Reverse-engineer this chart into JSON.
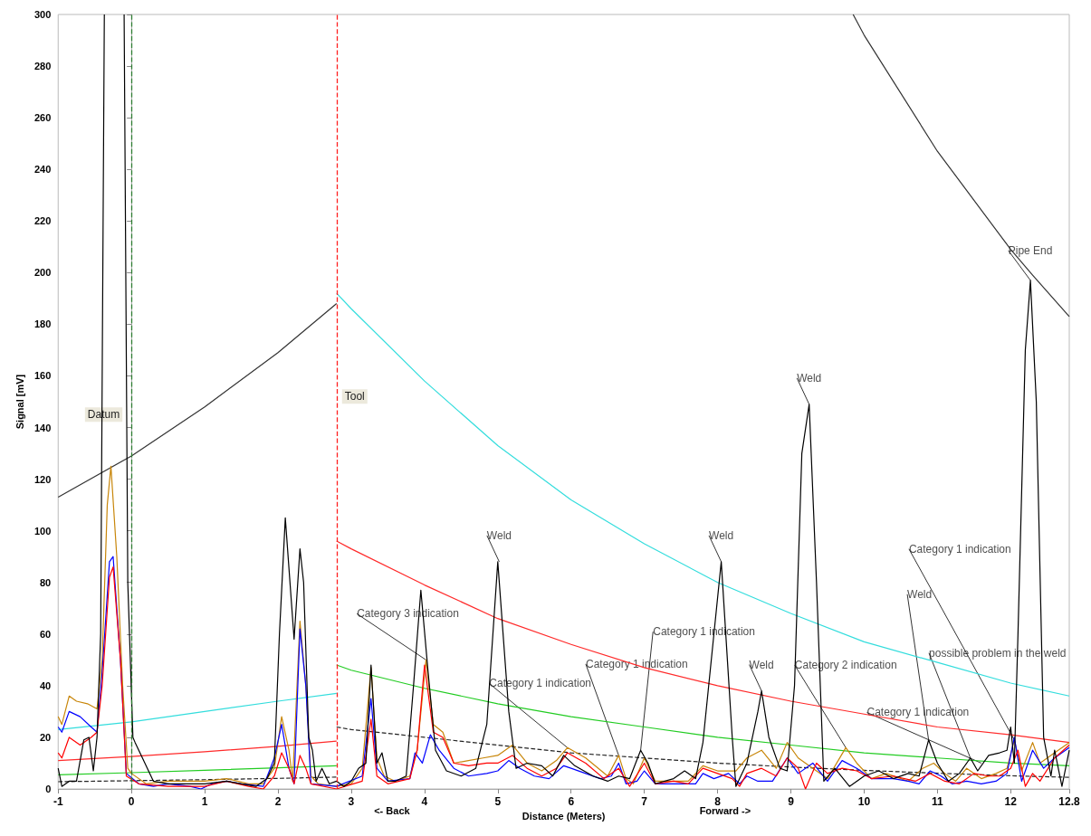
{
  "chart_data": {
    "type": "line",
    "xlabel": "Distance (Meters)",
    "ylabel": "Signal [mV]",
    "xlim": [
      -1,
      12.8
    ],
    "xticks": [
      -1,
      0,
      1,
      2,
      3,
      4,
      5,
      6,
      7,
      8,
      9,
      10,
      11,
      12,
      12.8
    ],
    "ylim": [
      0,
      300
    ],
    "yticks": [
      0,
      20,
      40,
      60,
      80,
      100,
      120,
      140,
      160,
      180,
      200,
      220,
      240,
      260,
      280,
      300
    ],
    "grid": false,
    "marker": "none",
    "series": [
      {
        "color": "#333333",
        "x": [
          -1,
          0,
          1,
          2,
          2.8
        ],
        "values": [
          113,
          129,
          148,
          169,
          188
        ]
      },
      {
        "color": "#333333",
        "x": [
          9.85,
          10,
          11,
          12,
          12.3,
          12.8
        ],
        "values": [
          300,
          292,
          247,
          209,
          199,
          183
        ]
      },
      {
        "color": "#33dddd",
        "x": [
          -1,
          0,
          1,
          2,
          2.8
        ],
        "values": [
          23,
          26,
          30,
          34,
          37
        ]
      },
      {
        "color": "#33dddd",
        "x": [
          2.8,
          3,
          4,
          5,
          6,
          7,
          8,
          9,
          10,
          11,
          12,
          12.8
        ],
        "values": [
          192,
          186,
          158,
          133,
          112,
          95,
          80,
          68,
          57,
          49,
          41,
          36
        ]
      },
      {
        "color": "#ff2a2a",
        "x": [
          -1,
          0,
          1,
          2,
          2.8
        ],
        "values": [
          11,
          12.6,
          14.4,
          16.5,
          18.5
        ]
      },
      {
        "color": "#ff2a2a",
        "x": [
          2.8,
          3,
          4,
          5,
          6,
          7,
          8,
          9,
          10,
          11,
          12,
          12.8
        ],
        "values": [
          96,
          93,
          79,
          66,
          56,
          47,
          40,
          34,
          29,
          24,
          21,
          18
        ]
      },
      {
        "color": "#22cc22",
        "x": [
          -1,
          0,
          1,
          2,
          2.8
        ],
        "values": [
          5.5,
          6.3,
          7.2,
          8.2,
          9
        ]
      },
      {
        "color": "#22cc22",
        "x": [
          2.8,
          3,
          4,
          5,
          6,
          7,
          8,
          9,
          10,
          11,
          12,
          12.8
        ],
        "values": [
          48,
          46,
          39,
          33,
          28,
          24,
          20,
          17,
          14,
          12,
          10,
          9
        ]
      },
      {
        "color": "#222222",
        "line_style": "dashed",
        "x": [
          -1,
          0,
          1,
          2,
          2.8
        ],
        "values": [
          2.8,
          3.2,
          3.6,
          4.1,
          4.6
        ]
      },
      {
        "color": "#222222",
        "line_style": "dashed",
        "x": [
          2.8,
          3,
          4,
          5,
          6,
          7,
          8,
          9,
          10,
          11,
          12,
          12.8
        ],
        "values": [
          24,
          23,
          20,
          17,
          14,
          12,
          10,
          8.5,
          7.2,
          6.1,
          5.1,
          4.5
        ]
      },
      {
        "color": "#c8860a",
        "x": [
          -1,
          -0.95,
          -0.85,
          -0.75,
          -0.6,
          -0.47,
          -0.4,
          -0.33,
          -0.28,
          -0.2,
          -0.12,
          -0.05,
          0,
          0.2,
          0.5,
          1,
          1.3,
          1.6,
          1.8,
          1.95,
          2.05,
          2.15,
          2.2,
          2.3,
          2.38,
          2.45,
          2.55,
          2.8,
          3,
          3.15,
          3.27,
          3.35,
          3.45,
          3.6,
          3.8,
          3.9,
          4.02,
          4.12,
          4.25,
          4.4,
          4.6,
          4.8,
          5,
          5.2,
          5.4,
          5.6,
          5.8,
          5.95,
          6.2,
          6.5,
          6.65,
          6.75,
          6.85,
          7,
          7.15,
          7.4,
          7.6,
          7.8,
          8,
          8.25,
          8.4,
          8.6,
          8.8,
          8.95,
          9.1,
          9.3,
          9.5,
          9.75,
          9.9,
          10.1,
          10.3,
          10.6,
          10.8,
          10.95,
          11.1,
          11.25,
          11.4,
          11.6,
          11.8,
          11.95,
          12.05,
          12.15,
          12.3,
          12.4,
          12.6,
          12.8
        ],
        "values": [
          28,
          25,
          36,
          34,
          33,
          31,
          50,
          110,
          125,
          90,
          40,
          8,
          6,
          2,
          3,
          3,
          4,
          2,
          2,
          8,
          28,
          15,
          3,
          65,
          40,
          5,
          2,
          1,
          2,
          8,
          47,
          12,
          5,
          3,
          5,
          15,
          50,
          25,
          22,
          10,
          11,
          12,
          13,
          17,
          10,
          7,
          11,
          16,
          12,
          5,
          13,
          4,
          2,
          12,
          3,
          3,
          3,
          9,
          7,
          7,
          12,
          15,
          8,
          18,
          12,
          8,
          4,
          16,
          10,
          4,
          6,
          3,
          8,
          10,
          6,
          3,
          8,
          4,
          6,
          8,
          19,
          7,
          18,
          10,
          14,
          18
        ]
      },
      {
        "color": "#0000ff",
        "x": [
          -1,
          -0.95,
          -0.85,
          -0.7,
          -0.55,
          -0.47,
          -0.4,
          -0.3,
          -0.25,
          -0.15,
          -0.07,
          0.1,
          0.3,
          0.5,
          0.8,
          0.95,
          1.1,
          1.3,
          1.5,
          1.8,
          1.95,
          2.05,
          2.15,
          2.22,
          2.3,
          2.38,
          2.45,
          2.8,
          3.15,
          3.27,
          3.35,
          3.5,
          3.8,
          3.87,
          3.97,
          4.08,
          4.2,
          4.4,
          4.6,
          4.85,
          5,
          5.15,
          5.3,
          5.5,
          5.7,
          5.9,
          6,
          6.2,
          6.4,
          6.55,
          6.65,
          6.75,
          6.9,
          7,
          7.15,
          7.5,
          7.7,
          7.8,
          7.95,
          8.15,
          8.3,
          8.4,
          8.55,
          8.75,
          8.95,
          9.1,
          9.3,
          9.5,
          9.7,
          9.9,
          10.1,
          10.4,
          10.6,
          10.75,
          10.9,
          11.05,
          11.2,
          11.4,
          11.6,
          11.8,
          11.95,
          12.05,
          12.15,
          12.3,
          12.45,
          12.6,
          12.8
        ],
        "values": [
          24,
          22,
          30,
          28,
          24,
          22,
          45,
          88,
          90,
          50,
          6,
          2,
          1,
          2,
          1,
          0,
          2,
          3,
          2,
          1,
          12,
          25,
          8,
          2,
          62,
          40,
          2,
          1,
          5,
          35,
          8,
          3,
          4,
          14,
          10,
          21,
          15,
          8,
          5,
          6,
          7,
          11,
          8,
          5,
          4,
          9,
          8,
          6,
          4,
          5,
          10,
          2,
          3,
          7,
          2,
          2,
          2,
          6,
          4,
          6,
          2,
          5,
          3,
          3,
          12,
          6,
          10,
          3,
          11,
          8,
          4,
          4,
          3,
          2,
          7,
          5,
          2,
          3,
          2,
          3,
          6,
          20,
          3,
          15,
          8,
          12,
          16
        ]
      },
      {
        "color": "#ff0000",
        "x": [
          -1,
          -0.95,
          -0.85,
          -0.7,
          -0.55,
          -0.47,
          -0.4,
          -0.3,
          -0.25,
          -0.15,
          -0.07,
          0.1,
          0.5,
          1,
          1.3,
          1.6,
          1.8,
          1.95,
          2.05,
          2.15,
          2.22,
          2.3,
          2.38,
          2.45,
          2.8,
          3.15,
          3.27,
          3.35,
          3.5,
          3.8,
          3.9,
          4,
          4.12,
          4.25,
          4.4,
          4.6,
          4.85,
          5,
          5.2,
          5.4,
          5.6,
          5.8,
          5.95,
          6.2,
          6.45,
          6.65,
          6.8,
          7,
          7.15,
          7.4,
          7.6,
          7.8,
          8,
          8.2,
          8.3,
          8.4,
          8.6,
          8.8,
          8.95,
          9.1,
          9.2,
          9.35,
          9.5,
          9.7,
          9.9,
          10.1,
          10.4,
          10.7,
          10.9,
          11.1,
          11.3,
          11.5,
          11.7,
          11.85,
          12,
          12.1,
          12.2,
          12.3,
          12.4,
          12.6,
          12.8
        ],
        "values": [
          14,
          12,
          20,
          17,
          20,
          22,
          40,
          82,
          86,
          50,
          5,
          2,
          1,
          1,
          3,
          1,
          0,
          5,
          14,
          8,
          2,
          13,
          8,
          2,
          0,
          3,
          27,
          5,
          2,
          4,
          15,
          48,
          22,
          20,
          10,
          9,
          10,
          10,
          13,
          8,
          5,
          8,
          14,
          10,
          4,
          8,
          1,
          10,
          2,
          3,
          2,
          8,
          6,
          4,
          1,
          6,
          8,
          5,
          12,
          8,
          0,
          10,
          6,
          8,
          7,
          4,
          5,
          3,
          6,
          3,
          2,
          6,
          5,
          5,
          8,
          15,
          1,
          6,
          3,
          12,
          17
        ]
      },
      {
        "color": "#000000",
        "x": [
          -1,
          -0.95,
          -0.85,
          -0.75,
          -0.65,
          -0.58,
          -0.52,
          -0.47,
          -0.42,
          -0.37,
          -0.25,
          -0.1,
          -0.05,
          0.02,
          0.05,
          0.15,
          0.3,
          0.5,
          1,
          1.3,
          1.5,
          1.7,
          1.85,
          1.95,
          2.02,
          2.1,
          2.22,
          2.3,
          2.35,
          2.42,
          2.47,
          2.52,
          2.6,
          2.7,
          2.8,
          2.9,
          3,
          3.1,
          3.2,
          3.27,
          3.35,
          3.42,
          3.5,
          3.6,
          3.75,
          3.85,
          3.95,
          4.05,
          4.15,
          4.3,
          4.5,
          4.7,
          4.85,
          5,
          5.15,
          5.25,
          5.4,
          5.6,
          5.75,
          5.9,
          6.05,
          6.3,
          6.5,
          6.65,
          6.8,
          6.95,
          7.05,
          7.15,
          7.4,
          7.55,
          7.7,
          7.8,
          7.95,
          8.05,
          8.2,
          8.25,
          8.4,
          8.55,
          8.6,
          8.7,
          8.85,
          8.95,
          9.05,
          9.15,
          9.25,
          9.35,
          9.45,
          9.6,
          9.8,
          10,
          10.2,
          10.4,
          10.6,
          10.75,
          10.88,
          11,
          11.15,
          11.3,
          11.45,
          11.55,
          11.7,
          11.85,
          11.95,
          12,
          12.05,
          12.1,
          12.2,
          12.27,
          12.35,
          12.45,
          12.55,
          12.6,
          12.7,
          12.8
        ],
        "values": [
          8,
          1,
          3,
          3,
          19,
          20,
          7,
          20,
          60,
          300,
          null,
          300,
          80,
          20,
          18,
          12,
          3,
          2,
          2,
          3,
          2,
          1,
          4,
          10,
          60,
          105,
          58,
          93,
          80,
          20,
          15,
          3,
          8,
          2,
          3,
          1,
          3,
          8,
          10,
          48,
          10,
          14,
          3,
          3,
          5,
          40,
          77,
          45,
          15,
          7,
          5,
          8,
          25,
          88,
          30,
          8,
          10,
          9,
          5,
          13,
          9,
          5,
          3,
          5,
          4,
          15,
          10,
          2,
          4,
          7,
          4,
          18,
          60,
          88,
          20,
          1,
          10,
          30,
          38,
          20,
          8,
          7,
          40,
          130,
          149,
          80,
          3,
          8,
          1,
          5,
          7,
          4,
          6,
          5,
          19,
          10,
          3,
          6,
          12,
          7,
          13,
          14,
          15,
          24,
          10,
          60,
          170,
          197,
          150,
          20,
          5,
          15,
          1,
          15
        ]
      }
    ],
    "ref_lines": [
      {
        "axis": "x",
        "value": 0,
        "label": "Datum",
        "color": "#2e7d32",
        "line_style": "dashed"
      },
      {
        "axis": "x",
        "value": 2.8,
        "label": "Tool",
        "color": "#ff2020",
        "line_style": "dashed"
      }
    ],
    "annotations": [
      {
        "text": "Weld",
        "x": 5.02,
        "y": 88
      },
      {
        "text": "Weld",
        "x": 8.05,
        "y": 88
      },
      {
        "text": "Weld",
        "x": 8.6,
        "y": 38
      },
      {
        "text": "Weld",
        "x": 9.25,
        "y": 149
      },
      {
        "text": "Weld",
        "x": 10.88,
        "y": 19
      },
      {
        "text": "Pipe End",
        "x": 12.27,
        "y": 197
      },
      {
        "text": "Category 3 indication",
        "x": 4.02,
        "y": 50
      },
      {
        "text": "Category 1 indication",
        "x": 5.95,
        "y": 16
      },
      {
        "text": "Category 1 indication",
        "x": 6.65,
        "y": 13
      },
      {
        "text": "Category 1 indication",
        "x": 6.95,
        "y": 15
      },
      {
        "text": "Category 2 indication",
        "x": 9.75,
        "y": 16
      },
      {
        "text": "possible problem in the weld",
        "x": 11.45,
        "y": 12
      },
      {
        "text": "Category 1 indication",
        "x": 11.6,
        "y": 10
      },
      {
        "text": "Category 1 indication",
        "x": 12.05,
        "y": 19
      },
      "<- Back",
      "Forward ->"
    ]
  }
}
